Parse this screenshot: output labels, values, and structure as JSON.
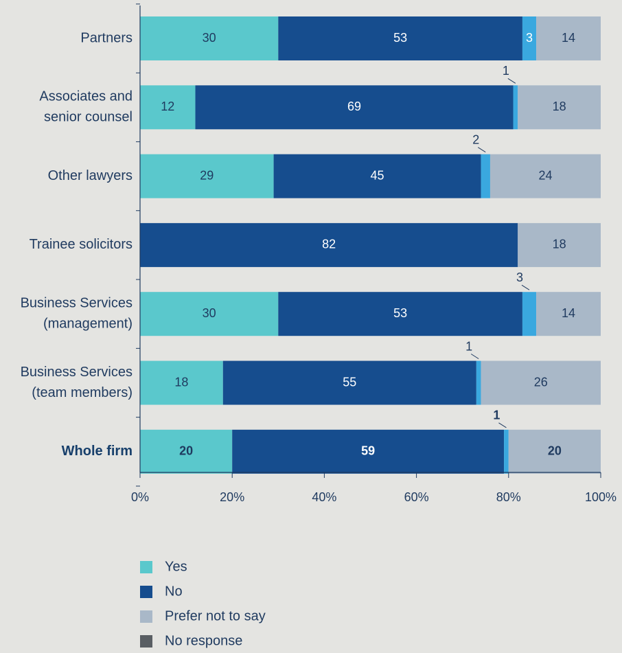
{
  "chart_data": {
    "type": "bar",
    "orientation": "horizontal",
    "stacked": true,
    "categories": [
      [
        "Partners"
      ],
      [
        "Associates and",
        "senior counsel"
      ],
      [
        "Other lawyers"
      ],
      [
        "Trainee solicitors"
      ],
      [
        "Business Services",
        "(management)"
      ],
      [
        "Business Services",
        "(team members)"
      ],
      [
        "Whole firm"
      ]
    ],
    "bold_categories": [
      6
    ],
    "series": [
      {
        "name": "Yes",
        "color": "#5ac8cc",
        "values": [
          30,
          12,
          29,
          0,
          30,
          18,
          20
        ]
      },
      {
        "name": "No",
        "color": "#164d8e",
        "values": [
          53,
          69,
          45,
          82,
          53,
          55,
          59
        ]
      },
      {
        "name": "Prefer not to say",
        "color": "#a9b8c8",
        "values": [
          0,
          0,
          0,
          0,
          0,
          0,
          0
        ]
      },
      {
        "name": "No response",
        "color": "#595e63",
        "values": [
          0,
          0,
          0,
          0,
          0,
          0,
          0
        ]
      }
    ],
    "extra_segments": [
      {
        "color": "#3aa8df",
        "values": [
          3,
          1,
          2,
          0,
          3,
          1,
          1
        ],
        "label_outside_except": [
          0
        ]
      },
      {
        "color": "#a9b8c8",
        "values": [
          14,
          18,
          24,
          18,
          14,
          26,
          20
        ]
      }
    ],
    "xlim": [
      0,
      100
    ],
    "x_ticks": [
      "0%",
      "20%",
      "40%",
      "60%",
      "80%",
      "100%"
    ],
    "grid": false,
    "legend_position": "bottom"
  }
}
